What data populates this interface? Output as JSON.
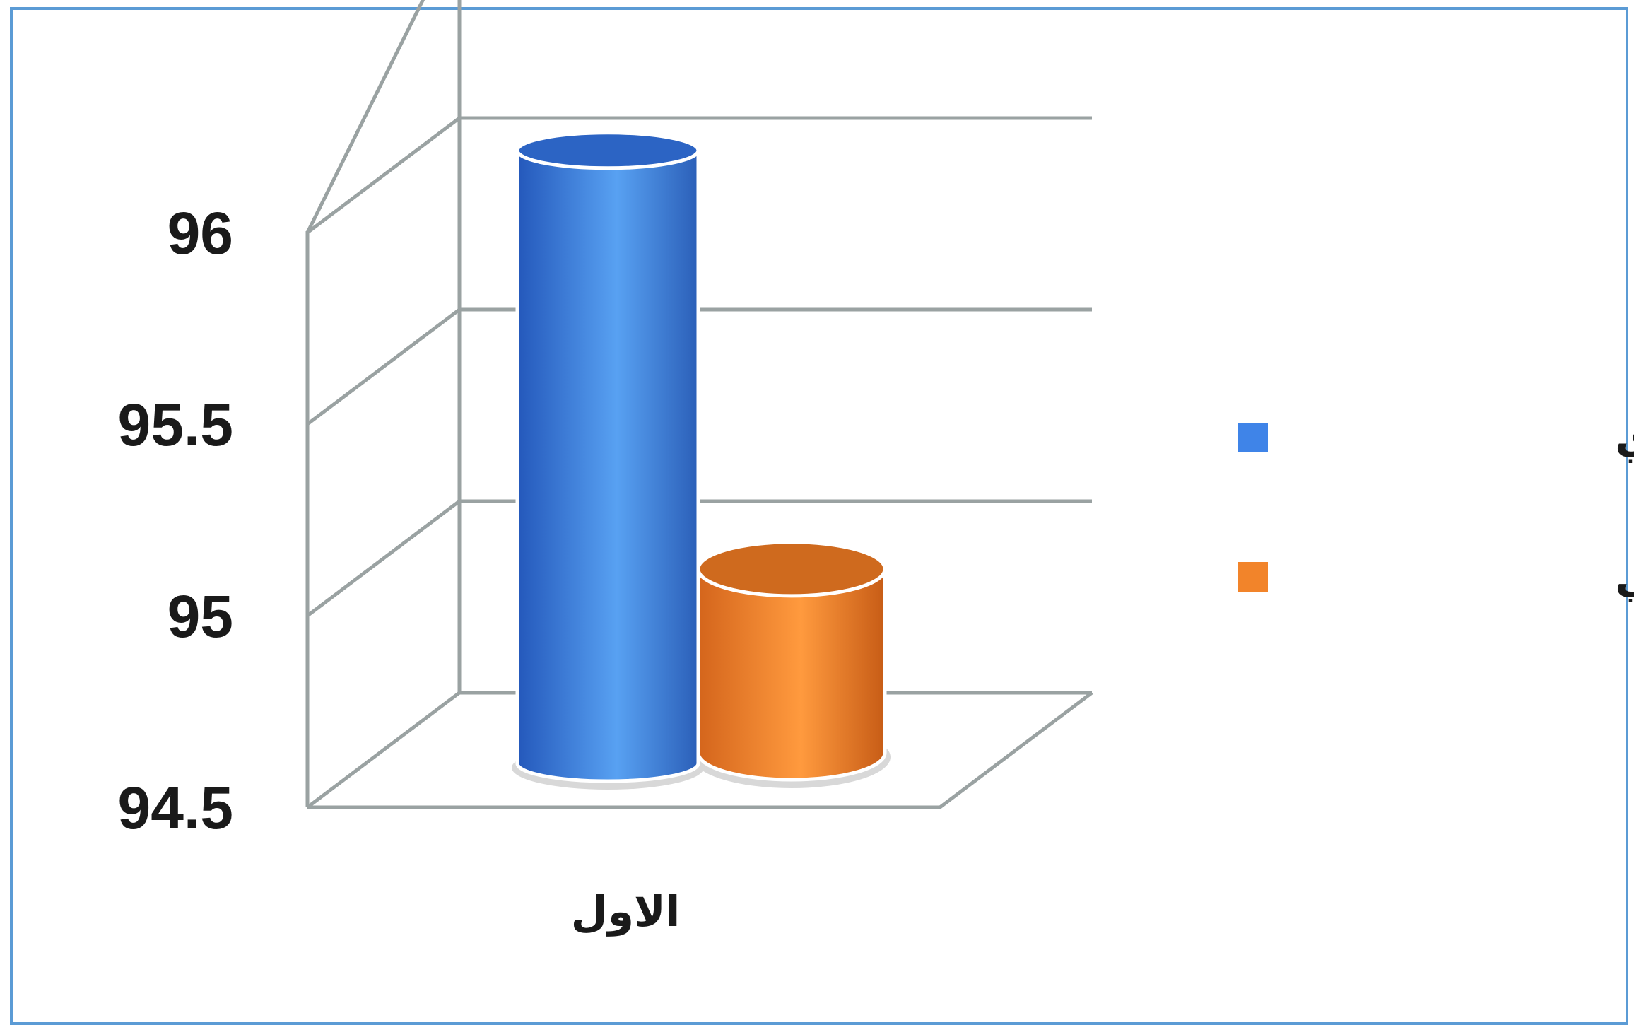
{
  "chart_data": {
    "type": "bar",
    "style": "3d-cylinder",
    "categories": [
      "الاول"
    ],
    "series": [
      {
        "name": "الجانب نظري",
        "values": [
          96.1
        ],
        "color": "#3f84e8"
      },
      {
        "name": "الجانب عملي",
        "values": [
          94.98
        ],
        "color": "#f2842a"
      }
    ],
    "y_ticks": [
      "94.5",
      "95",
      "95.5",
      "96"
    ],
    "ylim": [
      94.5,
      96.5
    ],
    "grid": true,
    "legend_position": "right",
    "frame_color": "#5b9bd5"
  }
}
